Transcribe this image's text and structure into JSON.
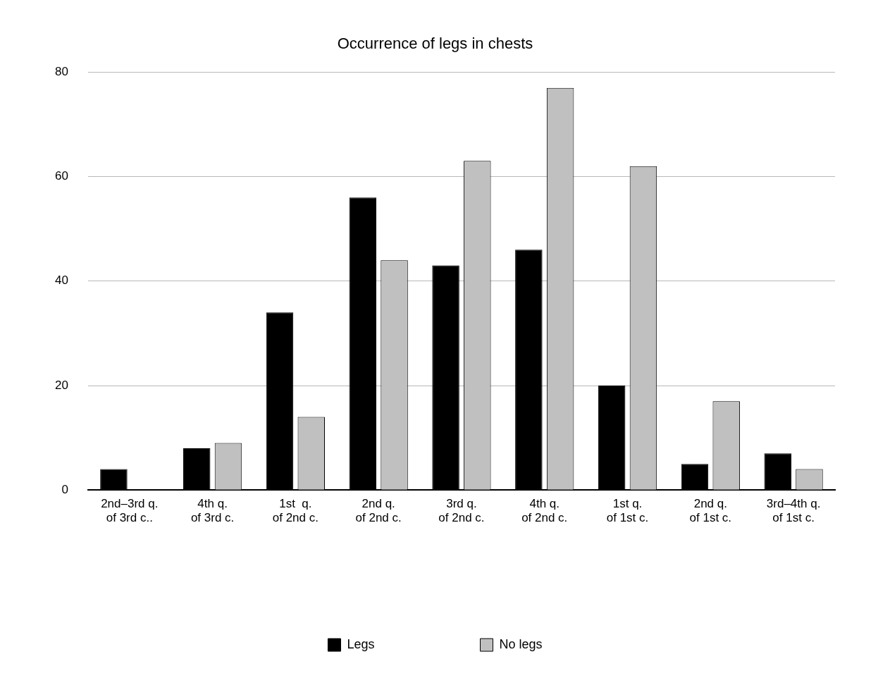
{
  "chart_data": {
    "type": "bar",
    "title": "Occurrence of legs in chests",
    "categories": [
      "2nd–3rd q.\nof 3rd c..",
      "4th q.\nof 3rd c.",
      "1st  q.\nof 2nd c.",
      "2nd q.\nof 2nd c.",
      "3rd q.\nof 2nd c.",
      "4th q.\nof 2nd c.",
      "1st q.\nof 1st c.",
      "2nd q.\nof 1st c.",
      "3rd–4th q.\nof 1st c."
    ],
    "series": [
      {
        "name": "Legs",
        "color": "#000000",
        "values": [
          4,
          8,
          34,
          56,
          43,
          46,
          20,
          5,
          7
        ]
      },
      {
        "name": "No legs",
        "color": "#c0c0c0",
        "values": [
          0,
          9,
          14,
          44,
          63,
          77,
          62,
          17,
          4
        ]
      }
    ],
    "ylim": [
      0,
      80
    ],
    "yticks": [
      0,
      20,
      40,
      60,
      80
    ],
    "grid": "y",
    "legend": "bottom"
  }
}
